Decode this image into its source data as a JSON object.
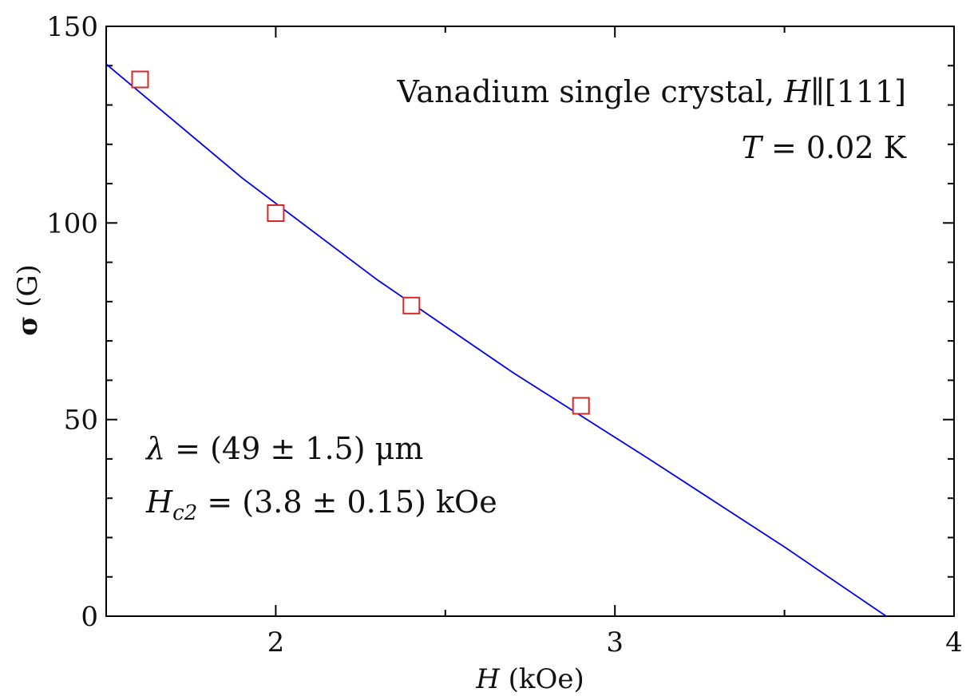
{
  "chart_data": {
    "type": "scatter",
    "x_axis": {
      "label_symbol": "H",
      "label_unit": "(kOe)",
      "range": [
        1.5,
        4.0
      ],
      "major_ticks": [
        2,
        3,
        4
      ],
      "major_tick_labels": [
        "2",
        "3",
        "4"
      ],
      "minor_ticks": [
        1.5,
        2.5,
        3.5
      ]
    },
    "y_axis": {
      "label_symbol": "σ",
      "label_unit": "(G)",
      "range": [
        0,
        150
      ],
      "major_ticks": [
        0,
        50,
        100,
        150
      ],
      "major_tick_labels": [
        "0",
        "50",
        "100",
        "150"
      ],
      "minor_ticks": [
        10,
        20,
        30,
        40,
        60,
        70,
        80,
        90,
        110,
        120,
        130,
        140
      ]
    },
    "grid": false,
    "series": [
      {
        "kind": "markers",
        "marker": "open-square",
        "color": "#d62728",
        "points": [
          {
            "x": 1.6,
            "y": 136.5
          },
          {
            "x": 2.0,
            "y": 102.5
          },
          {
            "x": 2.4,
            "y": 79.0
          },
          {
            "x": 2.9,
            "y": 53.5
          }
        ]
      },
      {
        "kind": "fit-line",
        "color": "#0000ee",
        "points": [
          {
            "x": 1.5,
            "y": 140.4
          },
          {
            "x": 1.9,
            "y": 111.5
          },
          {
            "x": 2.3,
            "y": 85.5
          },
          {
            "x": 2.7,
            "y": 61.9
          },
          {
            "x": 3.1,
            "y": 40.0
          },
          {
            "x": 3.5,
            "y": 17.6
          },
          {
            "x": 3.8,
            "y": 0
          }
        ]
      }
    ],
    "annotations": {
      "sample": {
        "text": "Vanadium single crystal, ",
        "field_symbol": "H",
        "parallel": "∥",
        "direction": "[111]"
      },
      "temperature": {
        "symbol": "T",
        "text": " = 0.02 K"
      },
      "lambda": {
        "symbol": "λ",
        "text": " = (49 ± 1.5) μm"
      },
      "hc2": {
        "symbol": "H",
        "subscript": "c2",
        "text": " = (3.8 ± 0.15) kOe"
      }
    }
  }
}
